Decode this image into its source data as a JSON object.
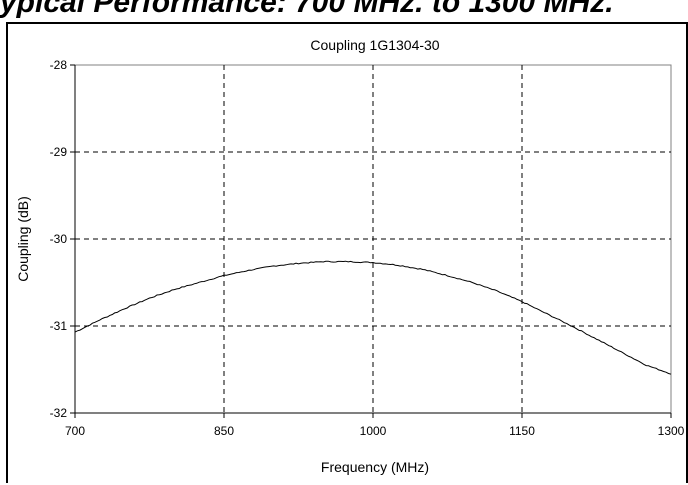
{
  "page": {
    "heading": "ypical Performance: 700 MHz. to 1300 MHz."
  },
  "chart_data": {
    "type": "line",
    "title": "Coupling 1G1304-30",
    "xlabel": "Frequency (MHz)",
    "ylabel": "Coupling (dB)",
    "xlim": [
      700,
      1300
    ],
    "ylim": [
      -32,
      -28
    ],
    "xticks": [
      700,
      850,
      1000,
      1150,
      1300
    ],
    "yticks": [
      -28,
      -29,
      -30,
      -31,
      -32
    ],
    "xtick_labels": [
      "700",
      "850",
      "1000",
      "1150",
      "1300"
    ],
    "ytick_labels": [
      "-28",
      "-29",
      "-30",
      "-31",
      "-32"
    ],
    "grid": true,
    "grid_style": "dashed",
    "legend": "none",
    "line_color": "#000000",
    "series": [
      {
        "x": [
          700,
          725,
          750,
          775,
          800,
          825,
          850,
          875,
          900,
          925,
          950,
          975,
          1000,
          1025,
          1050,
          1075,
          1100,
          1125,
          1150,
          1175,
          1200,
          1225,
          1250,
          1275,
          1300
        ],
        "values": [
          -31.07,
          -30.93,
          -30.8,
          -30.68,
          -30.58,
          -30.5,
          -30.42,
          -30.36,
          -30.31,
          -30.28,
          -30.26,
          -30.26,
          -30.27,
          -30.3,
          -30.35,
          -30.42,
          -30.5,
          -30.6,
          -30.72,
          -30.86,
          -31.0,
          -31.15,
          -31.3,
          -31.45,
          -31.55
        ]
      }
    ]
  }
}
